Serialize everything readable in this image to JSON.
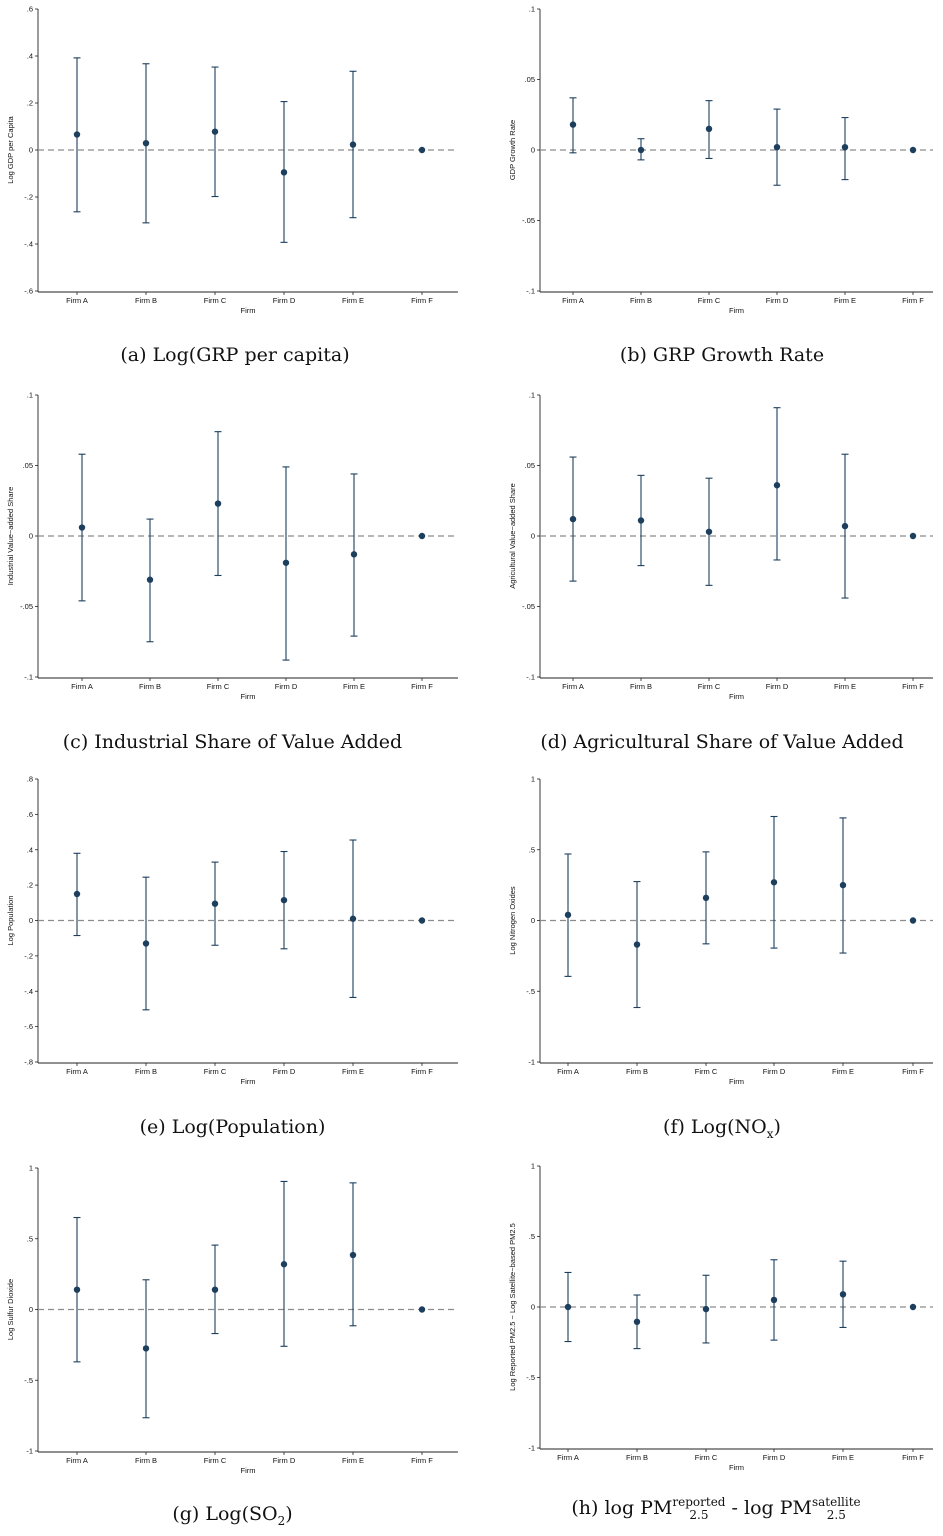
{
  "colors": {
    "marker": "#1d3f5e",
    "ref_line": "#8c8c8c",
    "axis": "#222222"
  },
  "chart_data": [
    {
      "type": "scatter",
      "subtype": "coefficient-plot",
      "caption": "(a) Log(GRP per capita)",
      "xlabel": "Firm",
      "ylabel": "Log GDP per Capita",
      "categories": [
        "Firm A",
        "Firm B",
        "Firm C",
        "Firm D",
        "Firm E",
        "Firm F"
      ],
      "yticks": [
        ".6",
        ".4",
        ".2",
        "0",
        "-.2",
        "-.4",
        "-.6"
      ],
      "ylim": [
        -0.6,
        0.6
      ],
      "reference_line": 0,
      "estimates": [
        0.066,
        0.029,
        0.078,
        -0.095,
        0.023,
        0.0
      ],
      "ci_low": [
        -0.263,
        -0.31,
        -0.198,
        -0.393,
        -0.288,
        0.0
      ],
      "ci_high": [
        0.392,
        0.367,
        0.353,
        0.206,
        0.335,
        0.0
      ]
    },
    {
      "type": "scatter",
      "subtype": "coefficient-plot",
      "caption": "(b) GRP Growth Rate",
      "xlabel": "Firm",
      "ylabel": "GDP Growth Rate",
      "categories": [
        "Firm A",
        "Firm B",
        "Firm C",
        "Firm D",
        "Firm E",
        "Firm F"
      ],
      "yticks": [
        ".1",
        ".05",
        "0",
        "-.05",
        "-.1"
      ],
      "ylim": [
        -0.1,
        0.1
      ],
      "reference_line": 0,
      "estimates": [
        0.018,
        0.0,
        0.015,
        0.002,
        0.002,
        0.0
      ],
      "ci_low": [
        -0.002,
        -0.007,
        -0.006,
        -0.025,
        -0.021,
        0.0
      ],
      "ci_high": [
        0.037,
        0.008,
        0.035,
        0.029,
        0.023,
        0.0
      ]
    },
    {
      "type": "scatter",
      "subtype": "coefficient-plot",
      "caption": "(c) Industrial Share of Value Added",
      "xlabel": "Firm",
      "ylabel": "Industrial Value−added Share",
      "categories": [
        "Firm A",
        "Firm B",
        "Firm C",
        "Firm D",
        "Firm E",
        "Firm F"
      ],
      "yticks": [
        ".1",
        ".05",
        "0",
        "-.05",
        "-.1"
      ],
      "ylim": [
        -0.1,
        0.1
      ],
      "reference_line": 0,
      "estimates": [
        0.006,
        -0.031,
        0.023,
        -0.019,
        -0.013,
        0.0
      ],
      "ci_low": [
        -0.046,
        -0.075,
        -0.028,
        -0.088,
        -0.071,
        0.0
      ],
      "ci_high": [
        0.058,
        0.012,
        0.074,
        0.049,
        0.044,
        0.0
      ]
    },
    {
      "type": "scatter",
      "subtype": "coefficient-plot",
      "caption": "(d) Agricultural Share of Value Added",
      "xlabel": "Firm",
      "ylabel": "Agricultural Value−added Share",
      "categories": [
        "Firm A",
        "Firm B",
        "Firm C",
        "Firm D",
        "Firm E",
        "Firm F"
      ],
      "yticks": [
        ".1",
        ".05",
        "0",
        "-.05",
        "-.1"
      ],
      "ylim": [
        -0.1,
        0.1
      ],
      "reference_line": 0,
      "estimates": [
        0.012,
        0.011,
        0.003,
        0.036,
        0.007,
        0.0
      ],
      "ci_low": [
        -0.032,
        -0.021,
        -0.035,
        -0.017,
        -0.044,
        0.0
      ],
      "ci_high": [
        0.056,
        0.043,
        0.041,
        0.091,
        0.058,
        0.0
      ]
    },
    {
      "type": "scatter",
      "subtype": "coefficient-plot",
      "caption": "(e) Log(Population)",
      "xlabel": "Firm",
      "ylabel": "Log Population",
      "categories": [
        "Firm A",
        "Firm B",
        "Firm C",
        "Firm D",
        "Firm E",
        "Firm F"
      ],
      "yticks": [
        ".8",
        ".6",
        ".4",
        ".2",
        "0",
        "-.2",
        "-.4",
        "-.6",
        "-.8"
      ],
      "ylim": [
        -0.8,
        0.8
      ],
      "reference_line": 0,
      "estimates": [
        0.15,
        -0.13,
        0.095,
        0.115,
        0.01,
        0.0
      ],
      "ci_low": [
        -0.085,
        -0.505,
        -0.14,
        -0.16,
        -0.435,
        0.0
      ],
      "ci_high": [
        0.38,
        0.245,
        0.33,
        0.39,
        0.455,
        0.0
      ]
    },
    {
      "type": "scatter",
      "subtype": "coefficient-plot",
      "caption": "(f) Log(NO",
      "caption_sub": "x",
      "caption_tail": ")",
      "xlabel": "Firm",
      "ylabel": "Log Nitrogen Oxides",
      "categories": [
        "Firm A",
        "Firm B",
        "Firm C",
        "Firm D",
        "Firm E",
        "Firm F"
      ],
      "yticks": [
        "1",
        ".5",
        "0",
        "-.5",
        "-1"
      ],
      "ylim": [
        -1,
        1
      ],
      "reference_line": 0,
      "estimates": [
        0.04,
        -0.17,
        0.16,
        0.27,
        0.25,
        0.0
      ],
      "ci_low": [
        -0.395,
        -0.615,
        -0.165,
        -0.195,
        -0.23,
        0.0
      ],
      "ci_high": [
        0.47,
        0.275,
        0.485,
        0.735,
        0.725,
        0.0
      ]
    },
    {
      "type": "scatter",
      "subtype": "coefficient-plot",
      "caption": "(g) Log(SO",
      "caption_sub": "2",
      "caption_tail": ")",
      "xlabel": "Firm",
      "ylabel": "Log Sulfur Dioxide",
      "categories": [
        "Firm A",
        "Firm B",
        "Firm C",
        "Firm D",
        "Firm E",
        "Firm F"
      ],
      "yticks": [
        "1",
        ".5",
        "0",
        "-.5",
        "-1"
      ],
      "ylim": [
        -1,
        1
      ],
      "reference_line": 0,
      "estimates": [
        0.14,
        -0.275,
        0.14,
        0.32,
        0.385,
        0.0
      ],
      "ci_low": [
        -0.37,
        -0.765,
        -0.17,
        -0.26,
        -0.115,
        0.0
      ],
      "ci_high": [
        0.65,
        0.21,
        0.455,
        0.905,
        0.895,
        0.0
      ]
    },
    {
      "type": "scatter",
      "subtype": "coefficient-plot",
      "caption": "(h) log PM",
      "caption_sup": "reported",
      "caption_sub": "2.5",
      "caption_mid": " - log PM",
      "caption_sup2": "satellite",
      "caption_sub2": "2.5",
      "xlabel": "Firm",
      "ylabel": "Log Reported PM2.5 − Log Satellite−based PM2.5",
      "categories": [
        "Firm A",
        "Firm B",
        "Firm C",
        "Firm D",
        "Firm E",
        "Firm F"
      ],
      "yticks": [
        "1",
        ".5",
        "0",
        "-.5",
        "-1"
      ],
      "ylim": [
        -1,
        1
      ],
      "reference_line": 0,
      "estimates": [
        0.0,
        -0.105,
        -0.015,
        0.05,
        0.09,
        0.0
      ],
      "ci_low": [
        -0.245,
        -0.295,
        -0.255,
        -0.235,
        -0.145,
        0.0
      ],
      "ci_high": [
        0.245,
        0.085,
        0.225,
        0.335,
        0.325,
        0.0
      ]
    }
  ]
}
